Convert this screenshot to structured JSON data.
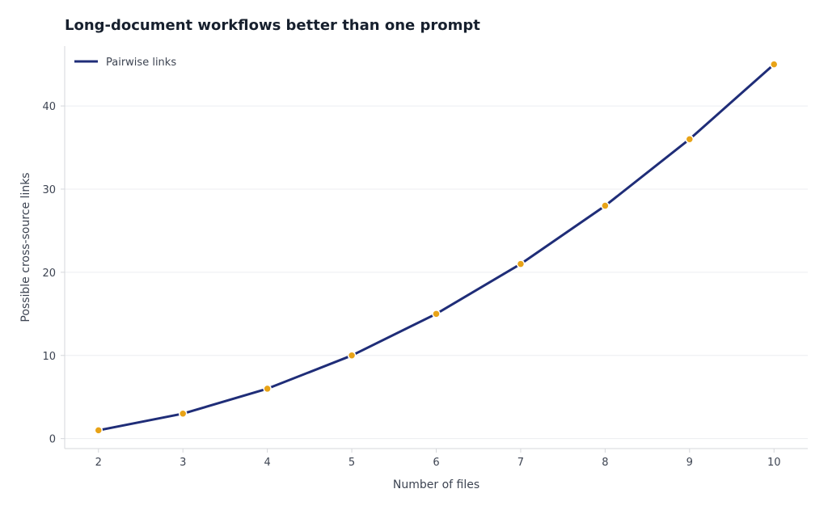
{
  "chart_data": {
    "type": "line",
    "title": "Long-document workflows better than one prompt",
    "xlabel": "Number of files",
    "ylabel": "Possible cross-source links",
    "x": [
      2,
      3,
      4,
      5,
      6,
      7,
      8,
      9,
      10
    ],
    "series": [
      {
        "name": "Pairwise links",
        "values": [
          1,
          3,
          6,
          10,
          15,
          21,
          28,
          36,
          45
        ],
        "line_color": "#1f2d78",
        "marker_color": "#e8a317"
      }
    ],
    "xticks": [
      2,
      3,
      4,
      5,
      6,
      7,
      8,
      9,
      10
    ],
    "yticks": [
      0,
      10,
      20,
      30,
      40
    ],
    "xlim": [
      1.6,
      10.4
    ],
    "ylim": [
      -1.2,
      47.2
    ],
    "grid": "horizontal",
    "legend_position": "top-left"
  }
}
